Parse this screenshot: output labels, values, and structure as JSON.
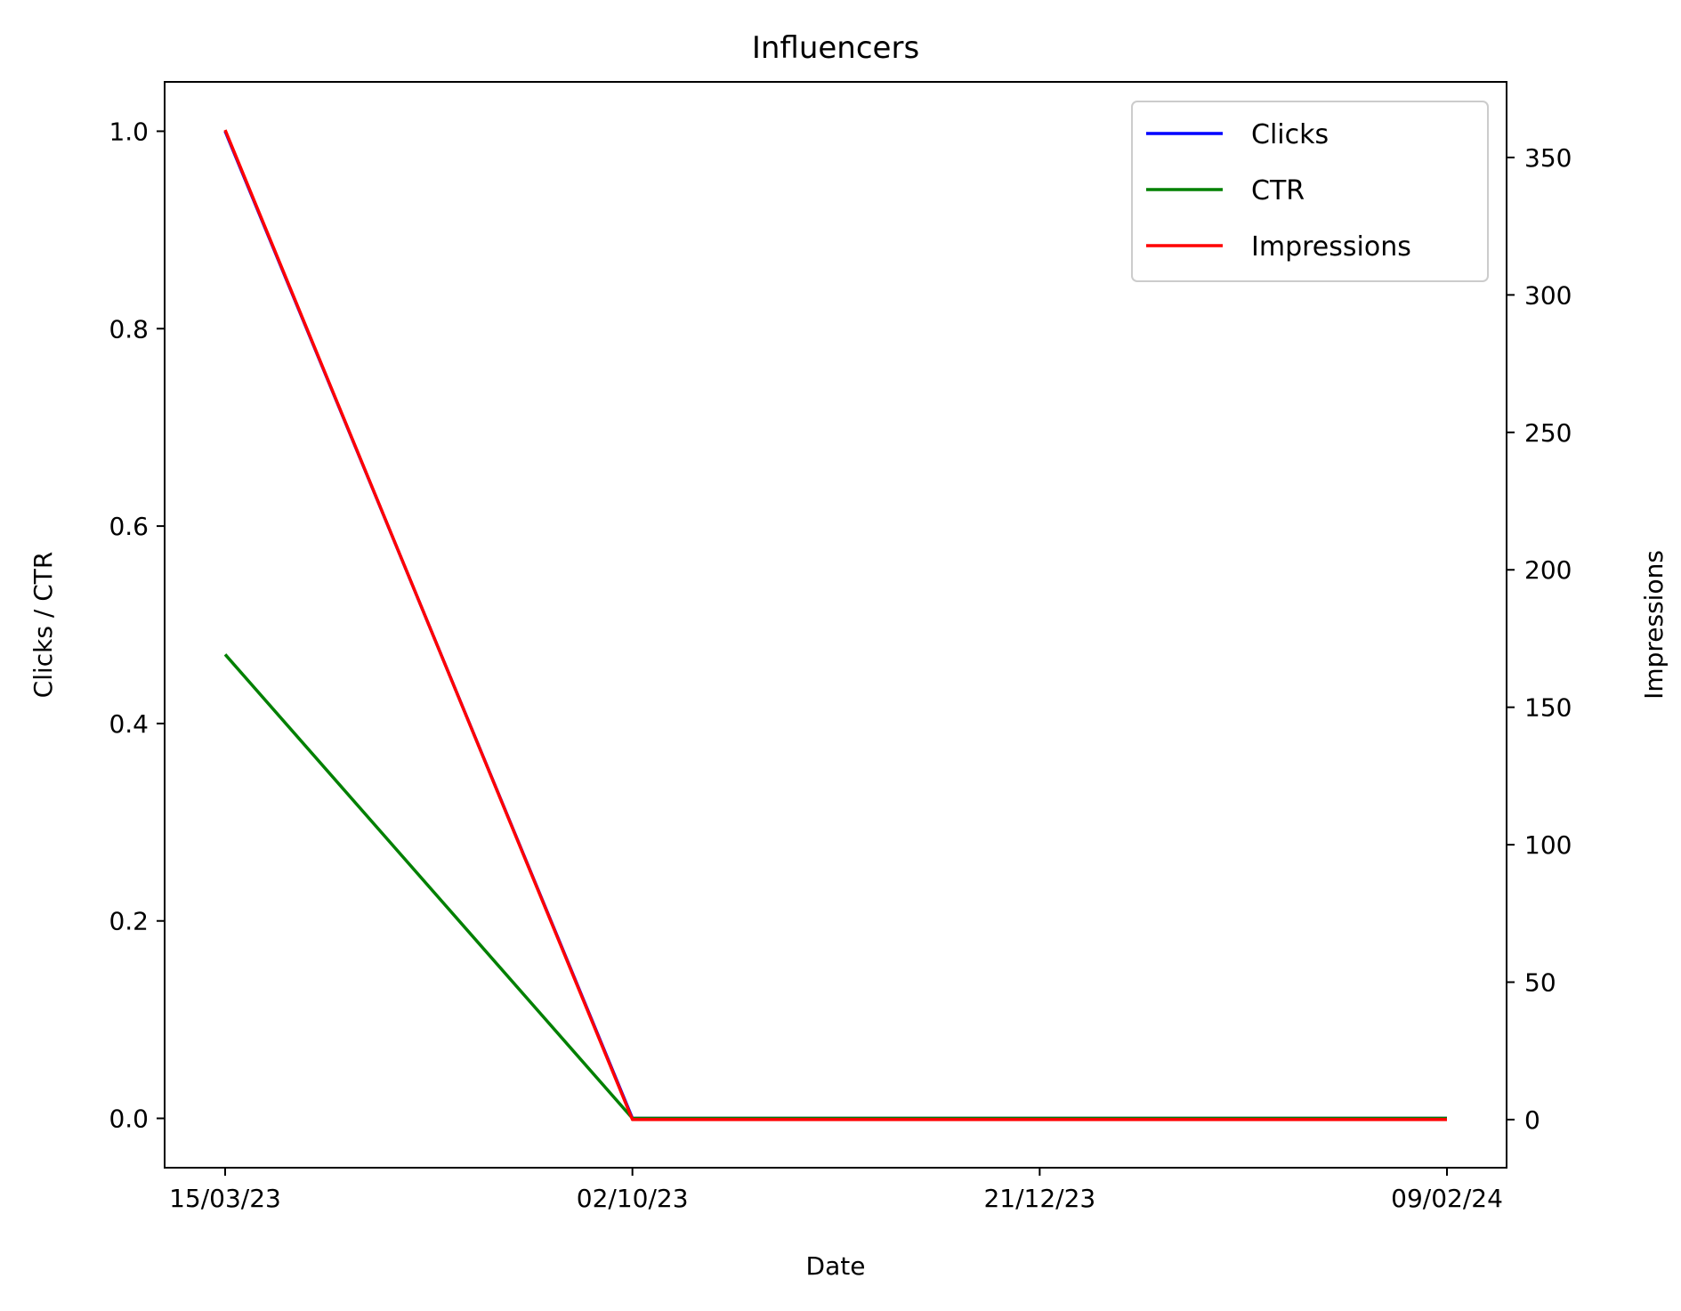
{
  "chart_data": {
    "type": "line",
    "title": "Influencers",
    "xlabel": "Date",
    "ylabel_left": "Clicks / CTR",
    "ylabel_right": "Impressions",
    "x_categories": [
      "15/03/23",
      "02/10/23",
      "21/12/23",
      "09/02/24"
    ],
    "ylim_left": [
      -0.05,
      1.05
    ],
    "ylim_right": [
      -17.5,
      377.5
    ],
    "yticks_left": [
      "0.0",
      "0.2",
      "0.4",
      "0.6",
      "0.8",
      "1.0"
    ],
    "yticks_right": [
      "0",
      "50",
      "100",
      "150",
      "200",
      "250",
      "300",
      "350"
    ],
    "grid": false,
    "legend_position": "upper right",
    "series": [
      {
        "name": "Clicks",
        "axis": "left",
        "color": "#0000ff",
        "values": [
          1.0,
          0.0,
          0.0,
          0.0
        ]
      },
      {
        "name": "CTR",
        "axis": "left",
        "color": "#008000",
        "values": [
          0.47,
          0.0,
          0.0,
          0.0
        ]
      },
      {
        "name": "Impressions",
        "axis": "right",
        "color": "#ff0000",
        "values": [
          360,
          0,
          0,
          0
        ]
      }
    ]
  }
}
